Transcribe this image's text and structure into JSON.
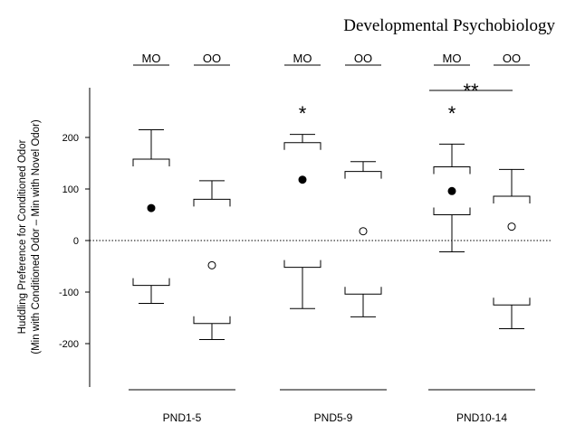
{
  "header": {
    "journal": "Developmental Psychobiology"
  },
  "chart_data": {
    "type": "box",
    "ylabel_line1": "Huddling Preference for Conditioned Odor",
    "ylabel_line2": "(Min with Conditioned Odor – Min with Novel Odor)",
    "yticks": [
      200,
      100,
      0,
      -100,
      -200
    ],
    "ylim": [
      -285,
      305
    ],
    "reference_line": 0,
    "groups": [
      {
        "name": "PND1-5",
        "boxes": [
          {
            "label": "MO",
            "whisker_low": -122,
            "q1": -87,
            "q3": 158,
            "whisker_high": 215,
            "median": 63,
            "filled": true,
            "significance": ""
          },
          {
            "label": "OO",
            "whisker_low": -192,
            "q1": -161,
            "q3": 80,
            "whisker_high": 116,
            "median": -48,
            "filled": false,
            "significance": ""
          }
        ]
      },
      {
        "name": "PND5-9",
        "boxes": [
          {
            "label": "MO",
            "whisker_low": -132,
            "q1": -52,
            "q3": 190,
            "whisker_high": 206,
            "median": 118,
            "filled": true,
            "significance": "*"
          },
          {
            "label": "OO",
            "whisker_low": -148,
            "q1": -104,
            "q3": 134,
            "whisker_high": 153,
            "median": 18,
            "filled": false,
            "significance": ""
          }
        ]
      },
      {
        "name": "PND10-14",
        "boxes": [
          {
            "label": "MO",
            "whisker_low": -22,
            "q1": 50,
            "q3": 143,
            "whisker_high": 187,
            "median": 96,
            "filled": true,
            "significance": "*"
          },
          {
            "label": "OO",
            "whisker_low": -171,
            "q1": -125,
            "q3": 86,
            "whisker_high": 138,
            "median": 27,
            "filled": false,
            "significance": ""
          }
        ],
        "bracket": "**"
      }
    ]
  }
}
